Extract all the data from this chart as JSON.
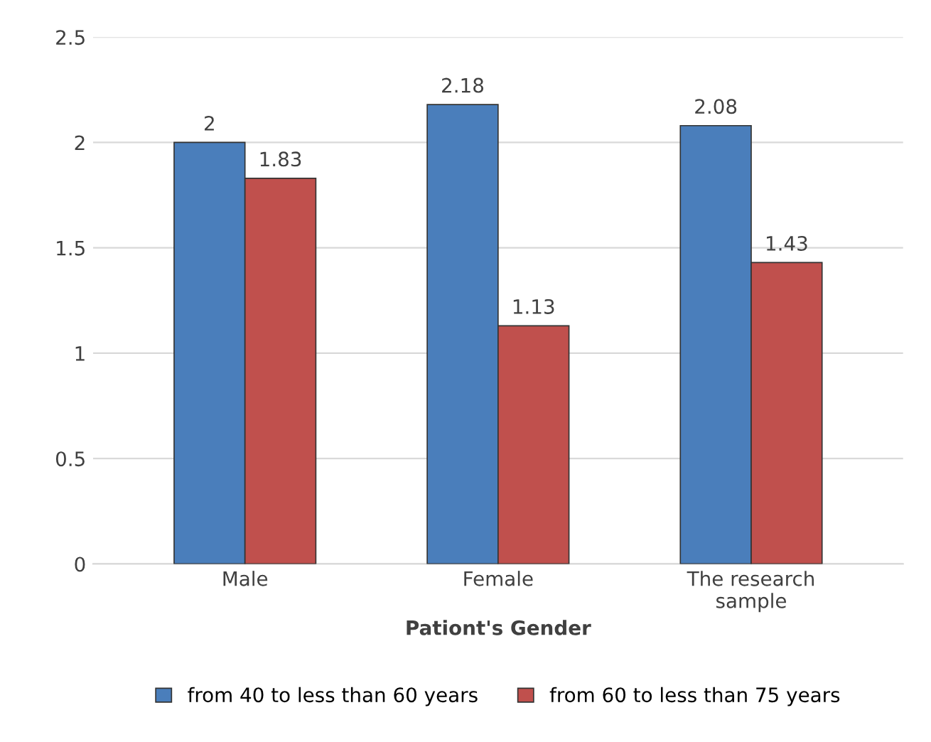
{
  "chart_data": {
    "type": "bar",
    "xlabel": "Pationt's Gender",
    "categories": [
      "Male",
      "Female",
      "The research\nsample"
    ],
    "series": [
      {
        "name": "from 40 to less than 60 years",
        "color": "#4a7ebb",
        "values": [
          2,
          2.18,
          2.08
        ]
      },
      {
        "name": "from 60 to less than 75 years",
        "color": "#c0504d",
        "values": [
          1.83,
          1.13,
          1.43
        ]
      }
    ],
    "ylim": [
      0,
      2.5
    ],
    "yticks": [
      0,
      0.5,
      1,
      1.5,
      2,
      2.5
    ],
    "grid": "y",
    "legend": "bottom",
    "data_labels": true
  }
}
